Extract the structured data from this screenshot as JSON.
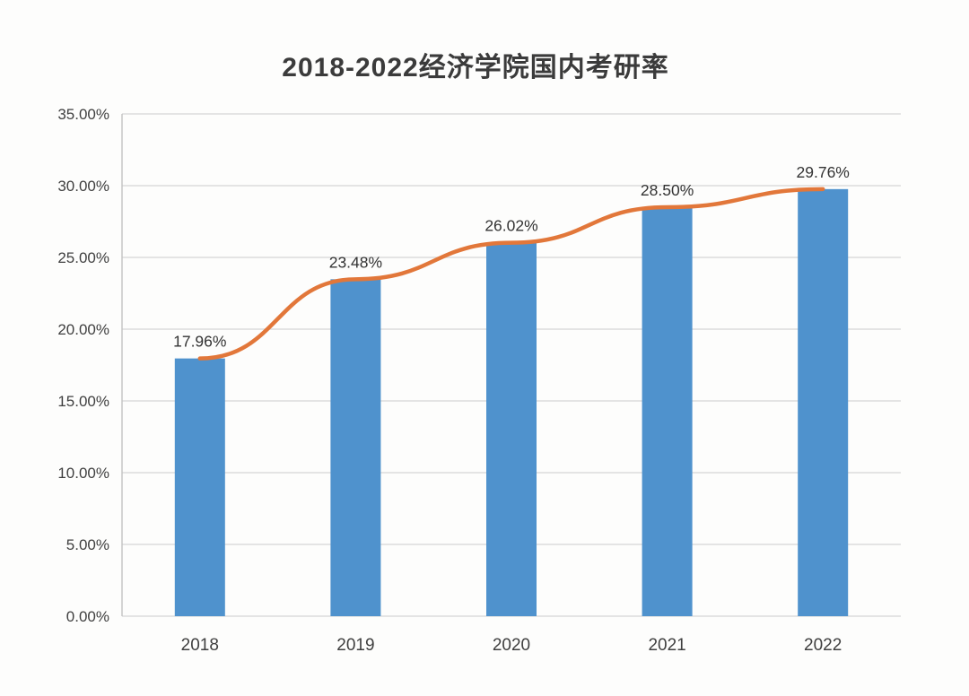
{
  "chart_data": {
    "type": "combo",
    "title": "2018-2022经济学院国内考研率",
    "categories": [
      "2018",
      "2019",
      "2020",
      "2021",
      "2022"
    ],
    "series": [
      {
        "name": "考研率柱形",
        "type": "bar",
        "values": [
          17.96,
          23.48,
          26.02,
          28.5,
          29.76
        ],
        "color": "#4f92cd"
      },
      {
        "name": "考研率趋势线",
        "type": "line",
        "values": [
          17.96,
          23.48,
          26.02,
          28.5,
          29.76
        ],
        "color": "#e2773a"
      }
    ],
    "data_labels": [
      "17.96%",
      "23.48%",
      "26.02%",
      "28.50%",
      "29.76%"
    ],
    "ylim": [
      0,
      35
    ],
    "ytick_step": 5,
    "ytick_labels": [
      "0.00%",
      "5.00%",
      "10.00%",
      "15.00%",
      "20.00%",
      "25.00%",
      "30.00%",
      "35.00%"
    ],
    "xlabel": "",
    "ylabel": "",
    "grid": true,
    "legend": "none",
    "colors": {
      "bar": "#4f92cd",
      "line": "#e2773a",
      "gridline": "#dcdcdc",
      "axis": "#c2c2c2",
      "tick_text": "#3f3f3f",
      "label_text": "#333333",
      "background": "#fdfdfc"
    }
  }
}
